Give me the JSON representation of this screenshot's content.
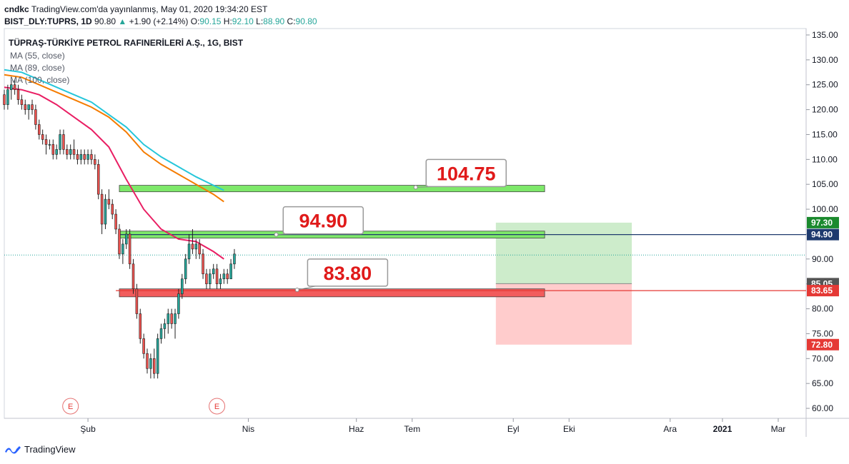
{
  "header": {
    "publisher": "cndkc",
    "published_text": "TradingView.com'da yayınlanmış, May 01, 2020 19:34:20 EST",
    "symbol_line": "BIST_DLY:TUPRS, 1D",
    "last": "90.80",
    "change": "+1.90 (+2.14%)",
    "o_label": "O:",
    "o": "90.15",
    "h_label": "H:",
    "h": "92.10",
    "l_label": "L:",
    "l": "88.90",
    "c_label": "C:",
    "c": "90.80"
  },
  "legend": {
    "title": "TÜPRAŞ-TÜRKİYE PETROL RAFINERİLERİ A.Ş., 1G, BIST",
    "ma": [
      "MA (55, close)",
      "MA (89, close)",
      "MA (100, close)"
    ]
  },
  "footer": {
    "brand": "TradingView"
  },
  "colors": {
    "ma55": "#e91e63",
    "ma89": "#f57c00",
    "ma100": "#26c6da",
    "up": "#26a69a",
    "down": "#ef5350",
    "resistance_zone": "#7ee86a",
    "support_zone": "#f25c5c",
    "target_area": "#cdeccb",
    "stop_area": "#ffcccc",
    "label_text": "#e01a1a"
  },
  "chart_data": {
    "type": "candlestick",
    "y_range": [
      58,
      136
    ],
    "y_ticks": [
      "135.00",
      "130.00",
      "125.00",
      "120.00",
      "115.00",
      "110.00",
      "105.00",
      "100.00",
      "95.00",
      "90.00",
      "85.00",
      "80.00",
      "75.00",
      "70.00",
      "65.00",
      "60.00"
    ],
    "x_labels": [
      "Şub",
      "Nis",
      "Haz",
      "Tem",
      "Eyl",
      "Eki",
      "Ara",
      "2021",
      "Mar"
    ],
    "x_label_values": [
      24,
      70,
      101,
      117,
      146,
      162,
      191,
      206,
      222
    ],
    "x_range": [
      0,
      230
    ],
    "earnings_markers": [
      {
        "x": 19,
        "label": "E"
      },
      {
        "x": 61,
        "label": "E"
      }
    ],
    "candles": [
      [
        0,
        123,
        124,
        120,
        121
      ],
      [
        1,
        121,
        125,
        120,
        124
      ],
      [
        2,
        124,
        126,
        122,
        125
      ],
      [
        3,
        125,
        126,
        123,
        124
      ],
      [
        4,
        124,
        125,
        121,
        122
      ],
      [
        5,
        122,
        123,
        120,
        121
      ],
      [
        6,
        121,
        122,
        119,
        120
      ],
      [
        7,
        120,
        121,
        118,
        121
      ],
      [
        8,
        121,
        122,
        119,
        120
      ],
      [
        9,
        120,
        121,
        116,
        117
      ],
      [
        10,
        117,
        118,
        114,
        115
      ],
      [
        11,
        115,
        116,
        113,
        114
      ],
      [
        12,
        114,
        115,
        111,
        113
      ],
      [
        13,
        113,
        114,
        112,
        113
      ],
      [
        14,
        113,
        114,
        110,
        111
      ],
      [
        15,
        111,
        113,
        110,
        112
      ],
      [
        16,
        112,
        116,
        111,
        115
      ],
      [
        17,
        115,
        116,
        111,
        112
      ],
      [
        18,
        112,
        113,
        110,
        111
      ],
      [
        19,
        111,
        113,
        110,
        112
      ],
      [
        20,
        112,
        114,
        110,
        111
      ],
      [
        21,
        111,
        112,
        109,
        110
      ],
      [
        22,
        110,
        112,
        109,
        111
      ],
      [
        23,
        111,
        112,
        109,
        110
      ],
      [
        24,
        110,
        112,
        109,
        111
      ],
      [
        25,
        111,
        112,
        109,
        110
      ],
      [
        26,
        110,
        111,
        108,
        109
      ],
      [
        27,
        109,
        110,
        102,
        103
      ],
      [
        28,
        103,
        104,
        95,
        97
      ],
      [
        29,
        97,
        103,
        96,
        102
      ],
      [
        30,
        102,
        104,
        100,
        101
      ],
      [
        31,
        101,
        102,
        98,
        99
      ],
      [
        32,
        99,
        100,
        95,
        96
      ],
      [
        33,
        96,
        97,
        90,
        91
      ],
      [
        34,
        91,
        94,
        89,
        93
      ],
      [
        35,
        93,
        96,
        92,
        95
      ],
      [
        36,
        95,
        96,
        88,
        89
      ],
      [
        37,
        89,
        90,
        83,
        84
      ],
      [
        38,
        84,
        85,
        78,
        79
      ],
      [
        39,
        79,
        80,
        73,
        74
      ],
      [
        40,
        74,
        75,
        70,
        71
      ],
      [
        41,
        71,
        72,
        67,
        68
      ],
      [
        42,
        68,
        71,
        66,
        70
      ],
      [
        43,
        70,
        72,
        66,
        67
      ],
      [
        44,
        67,
        75,
        66,
        74
      ],
      [
        45,
        74,
        77,
        73,
        76
      ],
      [
        46,
        76,
        78,
        74,
        77
      ],
      [
        47,
        77,
        80,
        75,
        79
      ],
      [
        48,
        79,
        80,
        76,
        77
      ],
      [
        49,
        77,
        80,
        74,
        79
      ],
      [
        50,
        79,
        84,
        78,
        83
      ],
      [
        51,
        83,
        87,
        82,
        86
      ],
      [
        52,
        86,
        91,
        85,
        90
      ],
      [
        53,
        90,
        95,
        89,
        93
      ],
      [
        54,
        93,
        96,
        91,
        92
      ],
      [
        55,
        92,
        94,
        90,
        93
      ],
      [
        56,
        93,
        94,
        90,
        91
      ],
      [
        57,
        91,
        92,
        86,
        87
      ],
      [
        58,
        87,
        88,
        84,
        85
      ],
      [
        59,
        85,
        88,
        84,
        87
      ],
      [
        60,
        87,
        89,
        86,
        88
      ],
      [
        61,
        88,
        89,
        84,
        85
      ],
      [
        62,
        85,
        87,
        84,
        86
      ],
      [
        63,
        86,
        88,
        85,
        87
      ],
      [
        64,
        87,
        88,
        85,
        86
      ],
      [
        65,
        86,
        90,
        86,
        89
      ],
      [
        66,
        89,
        92,
        88,
        91
      ]
    ],
    "series": [
      {
        "name": "MA (55, close)",
        "points": [
          [
            0,
            124.5
          ],
          [
            5,
            124
          ],
          [
            10,
            123
          ],
          [
            15,
            121
          ],
          [
            20,
            118.5
          ],
          [
            25,
            116
          ],
          [
            30,
            112.5
          ],
          [
            35,
            106
          ],
          [
            40,
            100
          ],
          [
            45,
            96
          ],
          [
            50,
            94
          ],
          [
            55,
            93.5
          ],
          [
            60,
            91.5
          ],
          [
            63,
            90
          ]
        ]
      },
      {
        "name": "MA (89, close)",
        "points": [
          [
            0,
            127
          ],
          [
            5,
            126.5
          ],
          [
            10,
            125
          ],
          [
            15,
            123.5
          ],
          [
            20,
            122
          ],
          [
            25,
            120.5
          ],
          [
            30,
            118.5
          ],
          [
            35,
            115.5
          ],
          [
            40,
            111.5
          ],
          [
            45,
            109
          ],
          [
            50,
            107
          ],
          [
            55,
            105
          ],
          [
            60,
            103
          ],
          [
            63,
            101.5
          ]
        ]
      },
      {
        "name": "MA (100, close)",
        "points": [
          [
            0,
            128
          ],
          [
            5,
            127.5
          ],
          [
            10,
            126
          ],
          [
            15,
            124.5
          ],
          [
            20,
            123
          ],
          [
            25,
            121.5
          ],
          [
            30,
            119
          ],
          [
            35,
            116.5
          ],
          [
            40,
            113
          ],
          [
            45,
            110.5
          ],
          [
            50,
            108.5
          ],
          [
            55,
            106.5
          ],
          [
            60,
            104.8
          ],
          [
            63,
            103.8
          ]
        ]
      }
    ],
    "zones": [
      {
        "name": "resistance-104",
        "x0": 33,
        "x1": 155,
        "y0": 103.5,
        "y1": 104.8,
        "kind": "resistance"
      },
      {
        "name": "resistance-95",
        "x0": 33,
        "x1": 155,
        "y0": 94.2,
        "y1": 95.6,
        "kind": "resistance"
      },
      {
        "name": "support-84",
        "x0": 33,
        "x1": 155,
        "y0": 82.4,
        "y1": 84.0,
        "kind": "support"
      }
    ],
    "callouts": [
      {
        "text": "104.75",
        "anchor_x": 118,
        "anchor_y": 104.4,
        "box_x": 121,
        "box_y": 110
      },
      {
        "text": "94.90",
        "anchor_x": 78,
        "anchor_y": 94.9,
        "box_x": 80,
        "box_y": 100.5
      },
      {
        "text": "83.80",
        "anchor_x": 84,
        "anchor_y": 83.8,
        "box_x": 87,
        "box_y": 90
      }
    ],
    "position": {
      "x0": 141,
      "x1": 180,
      "entry": 85.05,
      "target": 97.3,
      "stop": 72.8
    },
    "hlines": [
      {
        "y": 94.9,
        "color": "#1e3a6e",
        "label": "94.90",
        "x0": 33
      },
      {
        "y": 83.65,
        "color": "#e53935",
        "label": "83.65",
        "x0": 32
      }
    ],
    "last_price": 90.8,
    "price_tags": [
      {
        "value": "97.30",
        "y": 97.3,
        "bg": "#1b8a2e"
      },
      {
        "value": "94.90",
        "y": 94.9,
        "bg": "#1e3a6e"
      },
      {
        "value": "85.05",
        "y": 85.05,
        "bg": "#555555"
      },
      {
        "value": "83.65",
        "y": 83.65,
        "bg": "#e53935"
      },
      {
        "value": "72.80",
        "y": 72.8,
        "bg": "#e53935"
      }
    ]
  }
}
